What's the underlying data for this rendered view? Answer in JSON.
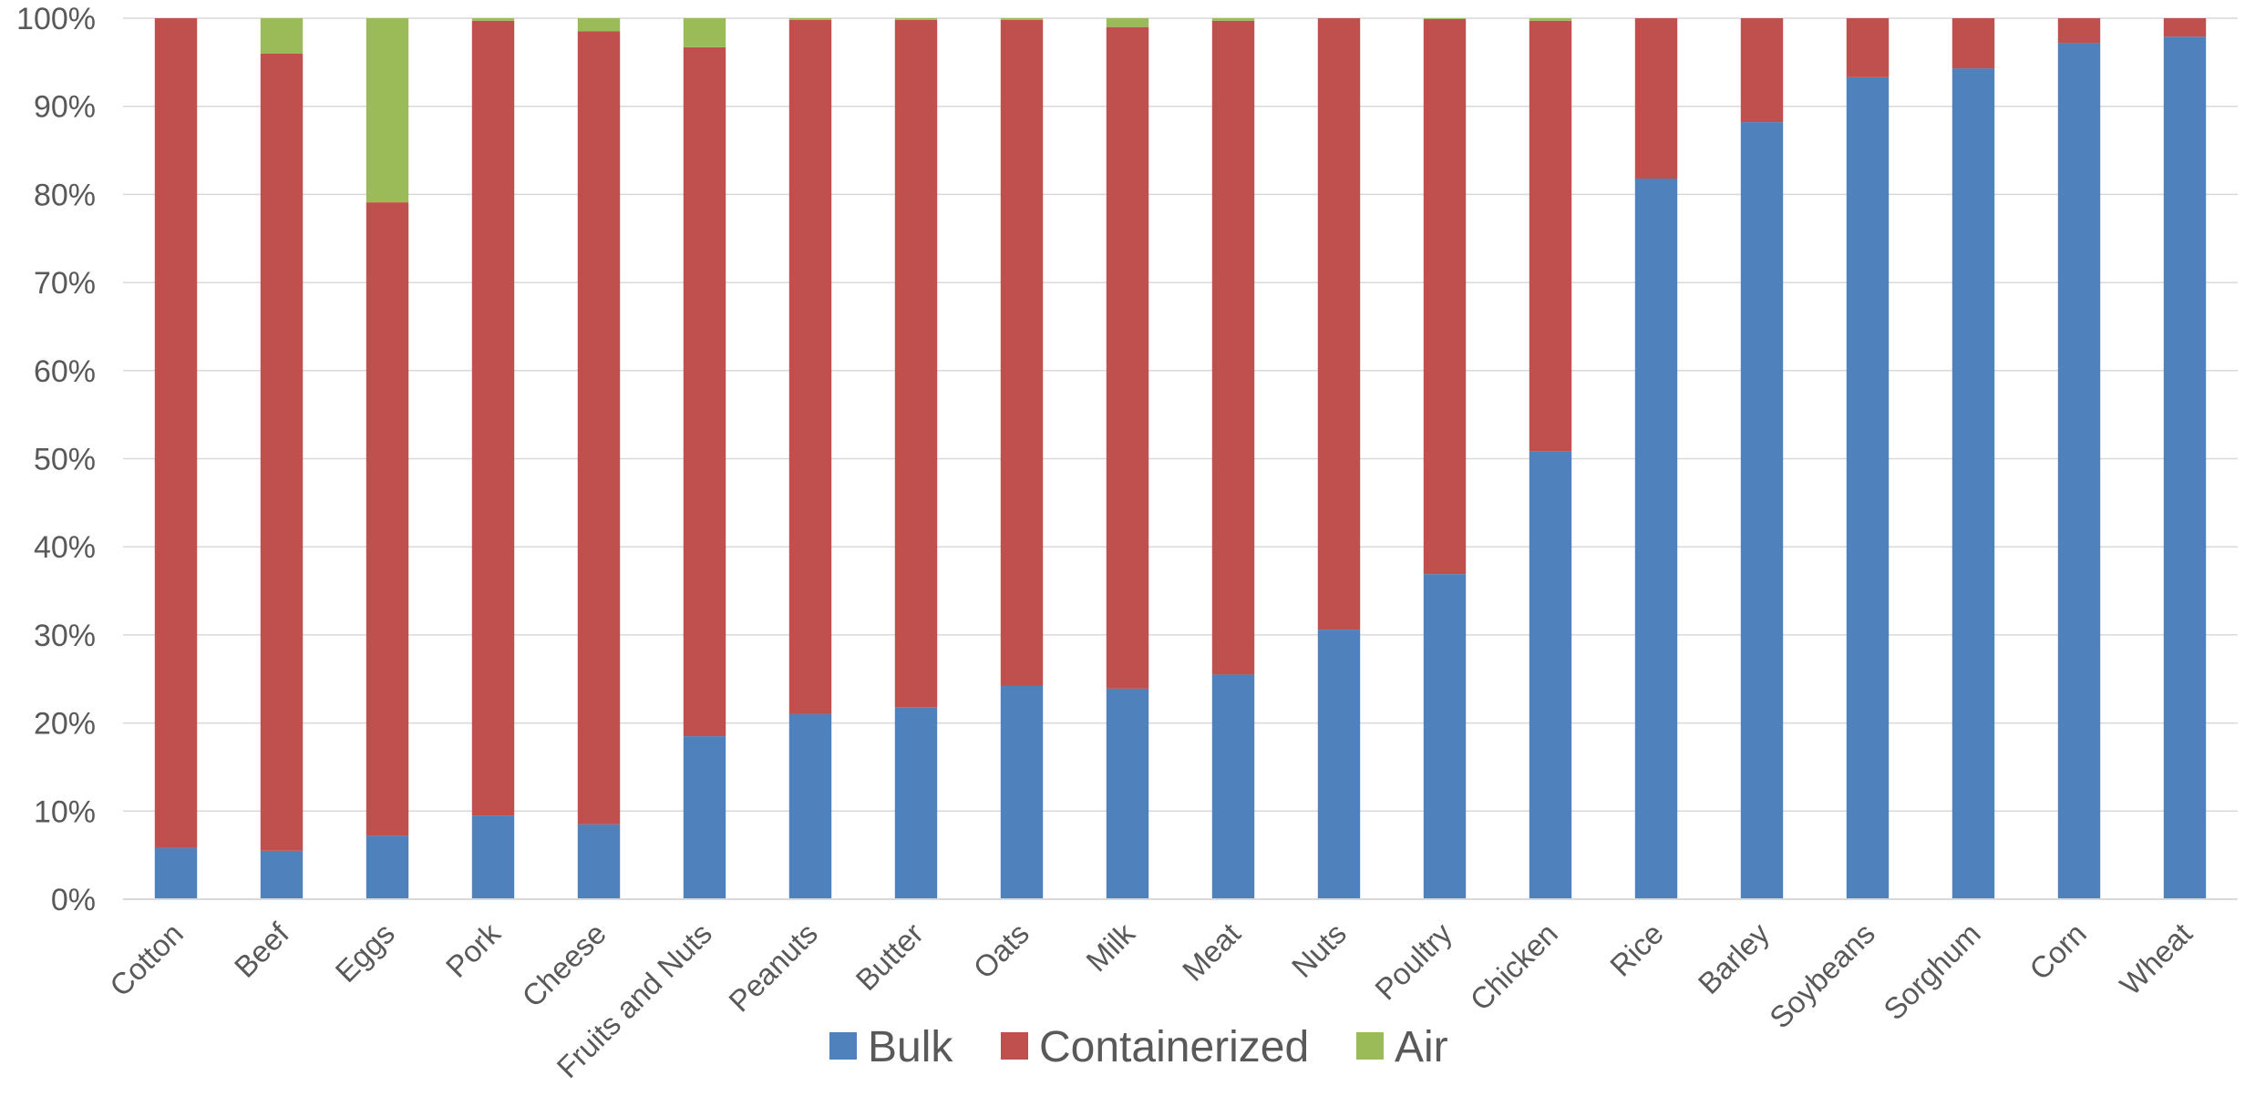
{
  "chart_data": {
    "type": "bar",
    "stacked": true,
    "percent_stacked": true,
    "title": "",
    "xlabel": "",
    "ylabel": "",
    "ylim": [
      0,
      100
    ],
    "yticks": [
      "0%",
      "10%",
      "20%",
      "30%",
      "40%",
      "50%",
      "60%",
      "70%",
      "80%",
      "90%",
      "100%"
    ],
    "grid": true,
    "legend_position": "bottom",
    "categories": [
      "Cotton",
      "Beef",
      "Eggs",
      "Pork",
      "Cheese",
      "Fruits and Nuts",
      "Peanuts",
      "Butter",
      "Oats",
      "Milk",
      "Meat",
      "Nuts",
      "Poultry",
      "Chicken",
      "Rice",
      "Barley",
      "Soybeans",
      "Sorghum",
      "Corn",
      "Wheat"
    ],
    "series": [
      {
        "name": "Bulk",
        "color": "#4f81bd",
        "values": [
          5.8,
          5.5,
          7.2,
          9.5,
          8.5,
          18.5,
          21.0,
          21.8,
          24.2,
          23.9,
          25.5,
          30.6,
          36.9,
          50.8,
          81.8,
          88.2,
          93.3,
          94.3,
          97.2,
          97.9
        ]
      },
      {
        "name": "Containerized",
        "color": "#c0504d",
        "values": [
          94.2,
          90.5,
          71.9,
          90.2,
          90.0,
          78.2,
          78.8,
          78.0,
          75.6,
          75.1,
          74.2,
          69.4,
          63.0,
          48.9,
          18.2,
          11.8,
          6.7,
          5.7,
          2.8,
          2.1
        ]
      },
      {
        "name": "Air",
        "color": "#9bbb59",
        "values": [
          0.0,
          4.0,
          20.9,
          0.3,
          1.5,
          3.3,
          0.2,
          0.2,
          0.2,
          1.0,
          0.3,
          0.0,
          0.1,
          0.3,
          0.0,
          0.0,
          0.0,
          0.0,
          0.0,
          0.0
        ]
      }
    ]
  }
}
